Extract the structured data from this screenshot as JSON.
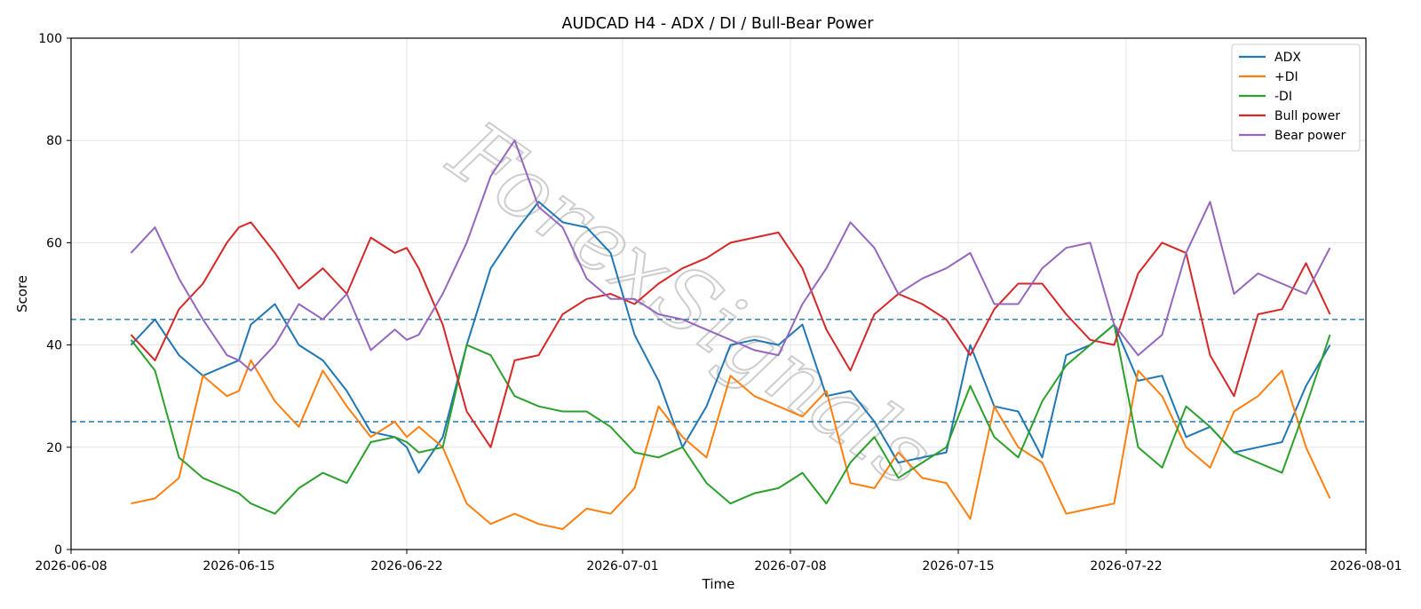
{
  "watermark": "ForexSignals",
  "chart_data": {
    "type": "line",
    "title": "AUDCAD H4 - ADX / DI / Bull-Bear Power",
    "xlabel": "Time",
    "ylabel": "Score",
    "ylim": [
      0,
      100
    ],
    "xlim": [
      "2026-06-08",
      "2026-08-01"
    ],
    "x_ticks": [
      "2026-06-08",
      "2026-06-15",
      "2026-06-22",
      "2026-07-01",
      "2026-07-08",
      "2026-07-15",
      "2026-07-22",
      "2026-08-01"
    ],
    "y_ticks": [
      0,
      20,
      40,
      60,
      80,
      100
    ],
    "grid": true,
    "legend_position": "upper right",
    "reference_lines": [
      {
        "y": 45,
        "color": "#1f77b4",
        "style": "dashed"
      },
      {
        "y": 25,
        "color": "#1f77b4",
        "style": "dashed"
      }
    ],
    "x": [
      "2026-06-10 12:00",
      "2026-06-11 12:00",
      "2026-06-12 12:00",
      "2026-06-13 12:00",
      "2026-06-14 12:00",
      "2026-06-15 00:00",
      "2026-06-15 12:00",
      "2026-06-16 12:00",
      "2026-06-17 12:00",
      "2026-06-18 12:00",
      "2026-06-19 12:00",
      "2026-06-20 12:00",
      "2026-06-21 12:00",
      "2026-06-22 00:00",
      "2026-06-22 12:00",
      "2026-06-23 12:00",
      "2026-06-24 12:00",
      "2026-06-25 12:00",
      "2026-06-26 12:00",
      "2026-06-27 12:00",
      "2026-06-28 12:00",
      "2026-06-29 12:00",
      "2026-06-30 12:00",
      "2026-07-01 12:00",
      "2026-07-02 12:00",
      "2026-07-03 12:00",
      "2026-07-04 12:00",
      "2026-07-05 12:00",
      "2026-07-06 12:00",
      "2026-07-07 12:00",
      "2026-07-08 12:00",
      "2026-07-09 12:00",
      "2026-07-10 12:00",
      "2026-07-11 12:00",
      "2026-07-12 12:00",
      "2026-07-13 12:00",
      "2026-07-14 12:00",
      "2026-07-15 12:00",
      "2026-07-16 12:00",
      "2026-07-17 12:00",
      "2026-07-18 12:00",
      "2026-07-19 12:00",
      "2026-07-20 12:00",
      "2026-07-21 12:00",
      "2026-07-22 12:00",
      "2026-07-23 12:00",
      "2026-07-24 12:00",
      "2026-07-25 12:00",
      "2026-07-26 12:00",
      "2026-07-27 12:00",
      "2026-07-28 12:00",
      "2026-07-29 12:00",
      "2026-07-30 12:00"
    ],
    "series": [
      {
        "name": "ADX",
        "color": "#1f77b4",
        "values": [
          40,
          45,
          38,
          34,
          36,
          37,
          44,
          48,
          40,
          37,
          31,
          23,
          22,
          20,
          15,
          22,
          40,
          55,
          62,
          68,
          64,
          63,
          58,
          42,
          33,
          20,
          28,
          40,
          41,
          40,
          44,
          30,
          31,
          25,
          17,
          18,
          19,
          40,
          28,
          27,
          18,
          38,
          40,
          44,
          33,
          34,
          22,
          24,
          19,
          20,
          21,
          32,
          40
        ]
      },
      {
        "name": "+DI",
        "color": "#ff7f0e",
        "values": [
          9,
          10,
          14,
          34,
          30,
          31,
          37,
          29,
          24,
          35,
          28,
          22,
          25,
          22,
          24,
          20,
          9,
          5,
          7,
          5,
          4,
          8,
          7,
          12,
          28,
          22,
          18,
          34,
          30,
          28,
          26,
          31,
          13,
          12,
          19,
          14,
          13,
          6,
          28,
          20,
          17,
          7,
          8,
          9,
          35,
          30,
          20,
          16,
          27,
          30,
          35,
          20,
          10
        ]
      },
      {
        "name": "-DI",
        "color": "#2ca02c",
        "values": [
          41,
          35,
          18,
          14,
          12,
          11,
          9,
          7,
          12,
          15,
          13,
          21,
          22,
          21,
          19,
          20,
          40,
          38,
          30,
          28,
          27,
          27,
          24,
          19,
          18,
          20,
          13,
          9,
          11,
          12,
          15,
          9,
          17,
          22,
          14,
          17,
          20,
          32,
          22,
          18,
          29,
          36,
          40,
          44,
          20,
          16,
          28,
          24,
          19,
          17,
          15,
          28,
          42
        ]
      },
      {
        "name": "Bull power",
        "color": "#d62728",
        "values": [
          42,
          37,
          47,
          52,
          60,
          63,
          64,
          58,
          51,
          55,
          50,
          61,
          58,
          59,
          55,
          44,
          27,
          20,
          37,
          38,
          46,
          49,
          50,
          48,
          52,
          55,
          57,
          60,
          61,
          62,
          55,
          43,
          35,
          46,
          50,
          48,
          45,
          38,
          47,
          52,
          52,
          46,
          41,
          40,
          54,
          60,
          58,
          38,
          30,
          46,
          47,
          56,
          46
        ]
      },
      {
        "name": "Bear power",
        "color": "#9467bd",
        "values": [
          58,
          63,
          53,
          45,
          38,
          37,
          35,
          40,
          48,
          45,
          50,
          39,
          43,
          41,
          42,
          50,
          60,
          73,
          80,
          67,
          63,
          53,
          49,
          49,
          46,
          45,
          43,
          41,
          39,
          38,
          48,
          55,
          64,
          59,
          50,
          53,
          55,
          58,
          48,
          48,
          55,
          59,
          60,
          44,
          38,
          42,
          58,
          68,
          50,
          54,
          52,
          50,
          59
        ]
      }
    ]
  }
}
